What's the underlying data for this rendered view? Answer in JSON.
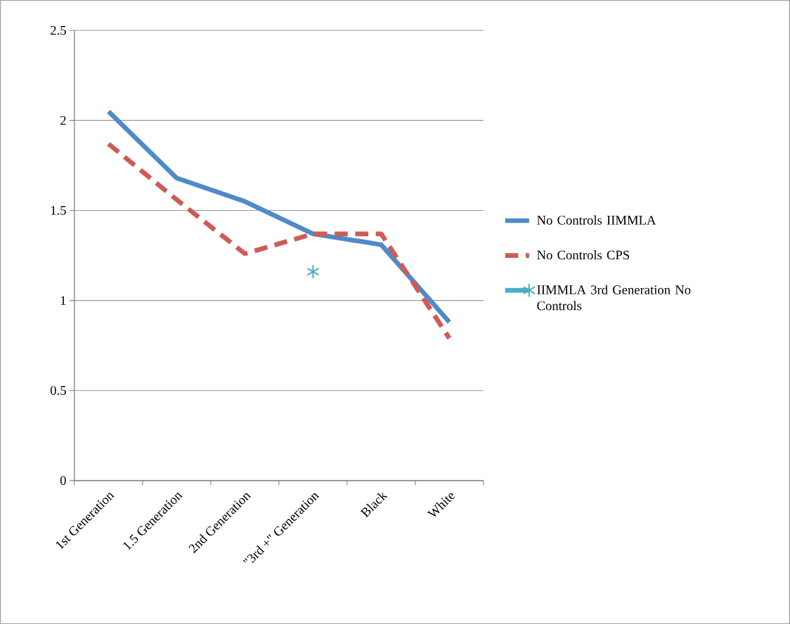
{
  "chart_data": {
    "type": "line",
    "categories": [
      "1st Generation",
      "1.5 Generation",
      "2nd Generation",
      "\"3rd +\" Generation",
      "Black",
      "White"
    ],
    "series": [
      {
        "name": "No Controls IIMMLA",
        "color": "#4f8ac9",
        "values": [
          2.05,
          1.68,
          1.55,
          1.37,
          1.31,
          0.88
        ],
        "line_style": "solid",
        "marker": "none"
      },
      {
        "name": "No Controls CPS",
        "color": "#cf5b55",
        "values": [
          1.87,
          1.56,
          1.26,
          1.37,
          1.37,
          0.79
        ],
        "line_style": "dashed",
        "marker": "none"
      },
      {
        "name": "IIMMLA 3rd Generation No Controls",
        "color": "#4bacc6",
        "values": [
          null,
          null,
          null,
          1.16,
          null,
          null
        ],
        "line_style": "solid",
        "marker": "cross"
      }
    ],
    "ylim": [
      0,
      2.5
    ],
    "yticks": [
      0,
      0.5,
      1,
      1.5,
      2,
      2.5
    ],
    "grid": "y",
    "legend": "right"
  }
}
